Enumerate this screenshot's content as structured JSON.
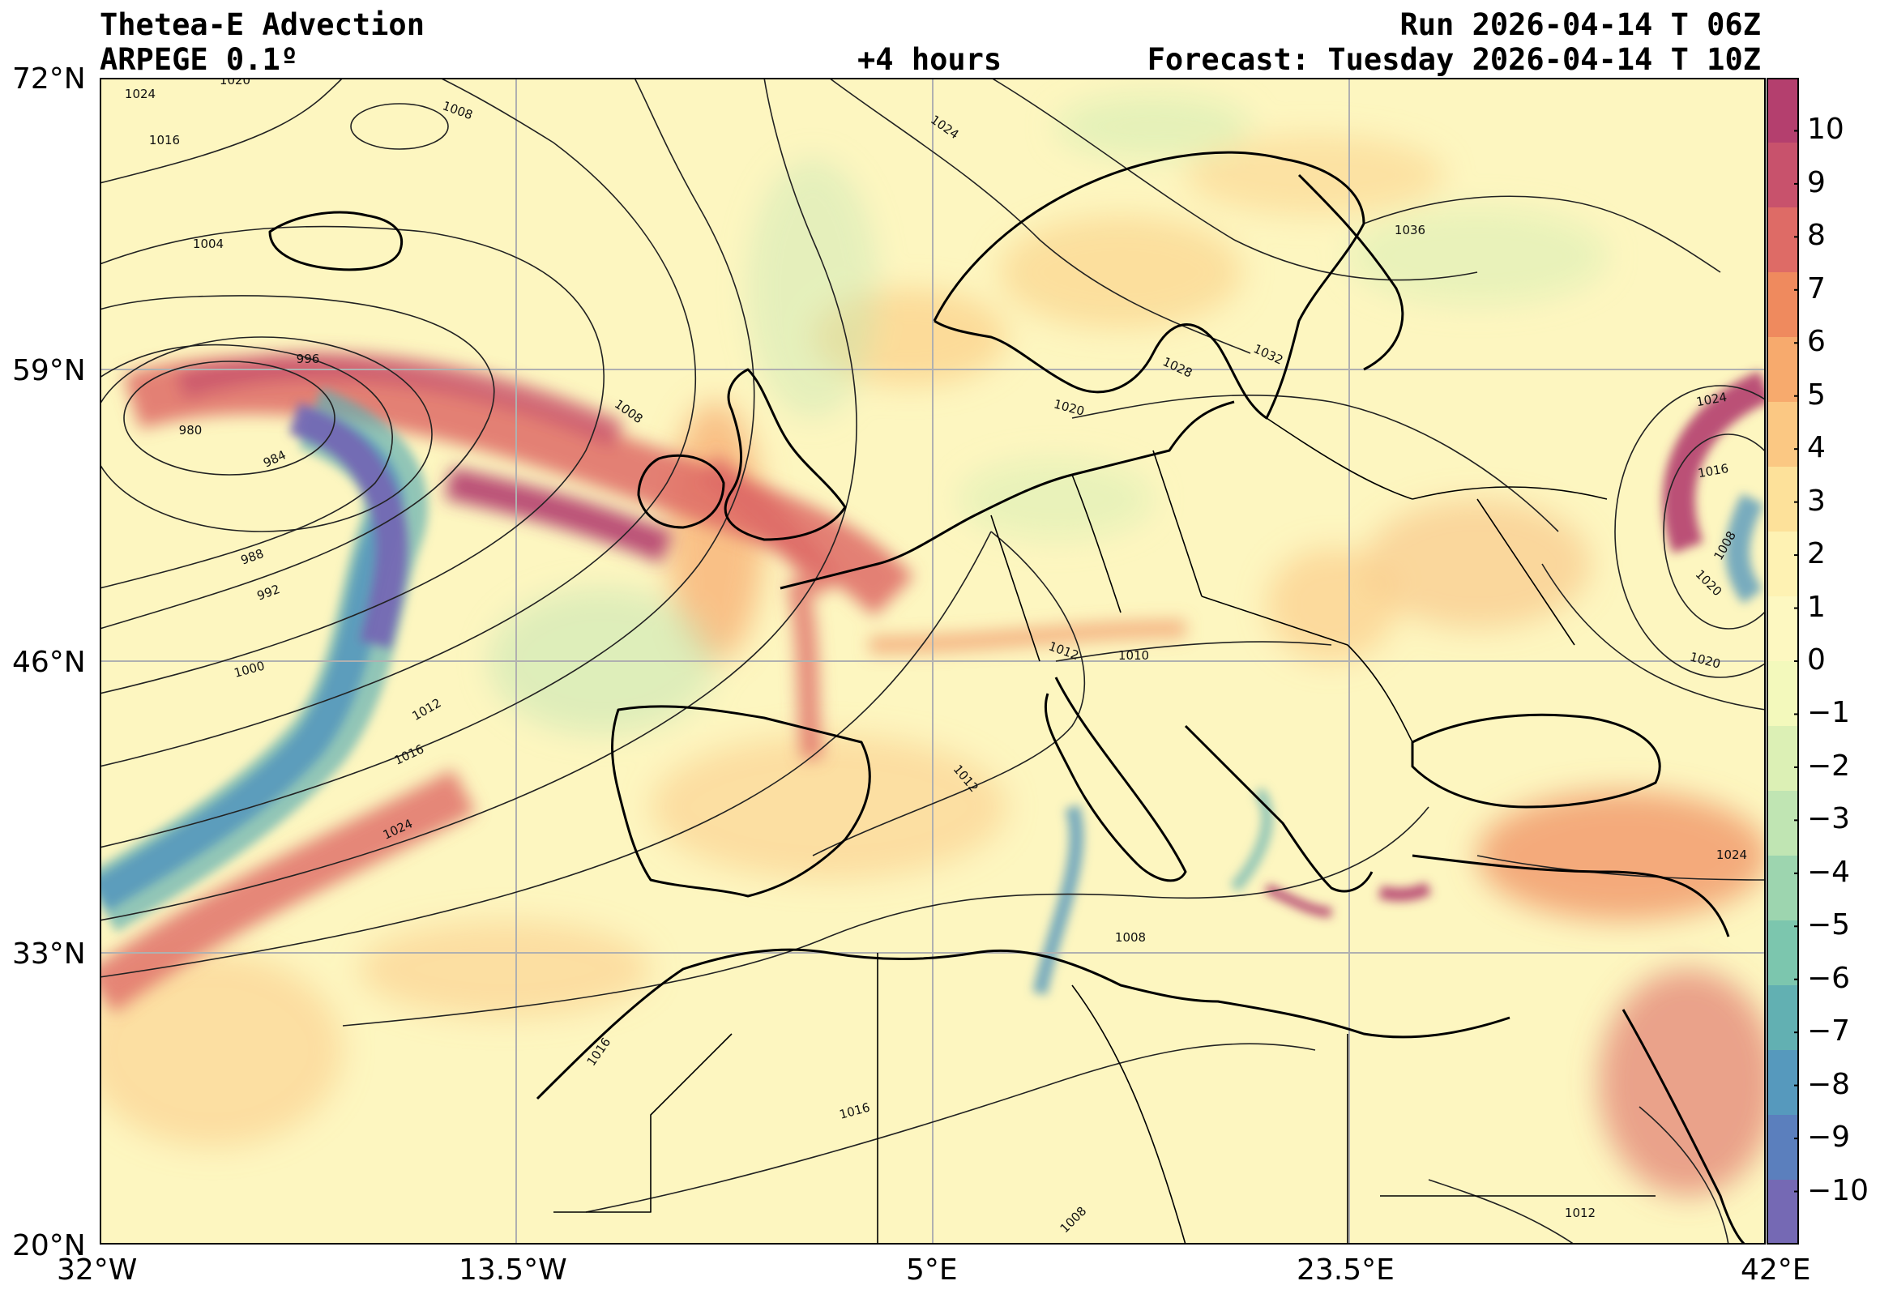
{
  "header": {
    "title": "Thetea-E Advection",
    "model": "ARPEGE 0.1º",
    "lead": "+4 hours",
    "run": "Run 2026-04-14 T 06Z",
    "forecast": "Forecast: Tuesday 2026-04-14 T 10Z"
  },
  "axes": {
    "lat_labels": [
      "72°N",
      "59°N",
      "46°N",
      "33°N",
      "20°N"
    ],
    "lon_labels": [
      "32°W",
      "13.5°W",
      "5°E",
      "23.5°E",
      "42°E"
    ]
  },
  "colorbar": {
    "ticks": [
      "10",
      "9",
      "8",
      "7",
      "6",
      "5",
      "4",
      "3",
      "2",
      "1",
      "0",
      "−1",
      "−2",
      "−3",
      "−4",
      "−5",
      "−6",
      "−7",
      "−8",
      "−9",
      "−10"
    ],
    "colors": [
      "#b43f6e",
      "#c8526c",
      "#de6b66",
      "#ef8a5e",
      "#f7aa6d",
      "#fbc883",
      "#fde19a",
      "#fef2b3",
      "#fdf8c1",
      "#f3f9bc",
      "#dcf0b5",
      "#c0e5b3",
      "#9dd5af",
      "#7cc6ae",
      "#62b0b2",
      "#5699bd",
      "#5b7fbd",
      "#7569b4"
    ]
  },
  "isobar_labels": [
    "1024",
    "1020",
    "1008",
    "1016",
    "1004",
    "1024",
    "1036",
    "996",
    "1028",
    "1032",
    "980",
    "984",
    "1008",
    "1020",
    "988",
    "992",
    "1024",
    "1016",
    "1000",
    "1012",
    "1012",
    "1010",
    "1008",
    "1012",
    "1016",
    "1020",
    "1020",
    "1024",
    "1024",
    "1008",
    "1016",
    "1016",
    "1008",
    "1012"
  ],
  "map_style": {
    "background": "#fdf6c0",
    "grid": "#b0b0b0",
    "coast": "#000000",
    "isobar": "#222222"
  }
}
